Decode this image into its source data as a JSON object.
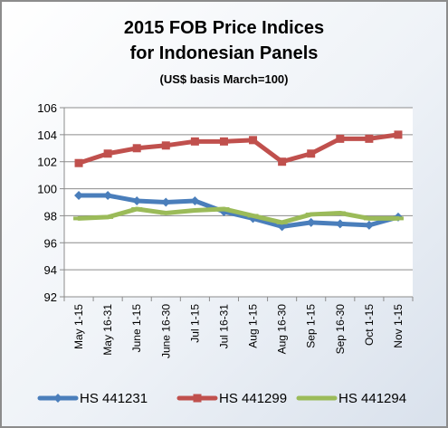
{
  "chart_data": {
    "type": "line",
    "title": "2015 FOB Price Indices",
    "title2": "for Indonesian Panels",
    "subtitle": "(US$ basis March=100)",
    "categories": [
      "May 1-15",
      "May 16-31",
      "June 1-15",
      "June 16-30",
      "Jul 1-15",
      "Jul 16-31",
      "Aug 1-15",
      "Aug 16-30",
      "Sep 1-15",
      "Sep 16-30",
      "Oct 1-15",
      "Nov 1-15"
    ],
    "y_ticks": [
      "92",
      "94",
      "96",
      "98",
      "100",
      "102",
      "104",
      "106"
    ],
    "ylim": [
      92,
      106
    ],
    "grid": true,
    "legend": "bottom",
    "series": [
      {
        "name": "HS 441231",
        "color": "#4a7ebb",
        "values": [
          99.5,
          99.5,
          99.1,
          99.0,
          99.1,
          98.3,
          97.8,
          97.2,
          97.5,
          97.4,
          97.3,
          97.9
        ]
      },
      {
        "name": "HS 441299",
        "color": "#c0504d",
        "values": [
          101.9,
          102.6,
          103.0,
          103.2,
          103.5,
          103.5,
          103.6,
          102.0,
          102.6,
          103.7,
          103.7,
          104.0
        ]
      },
      {
        "name": "HS 441294",
        "color": "#9bbb59",
        "values": [
          97.8,
          97.9,
          98.5,
          98.2,
          98.4,
          98.5,
          98.0,
          97.5,
          98.1,
          98.2,
          97.8,
          97.8
        ]
      }
    ]
  }
}
